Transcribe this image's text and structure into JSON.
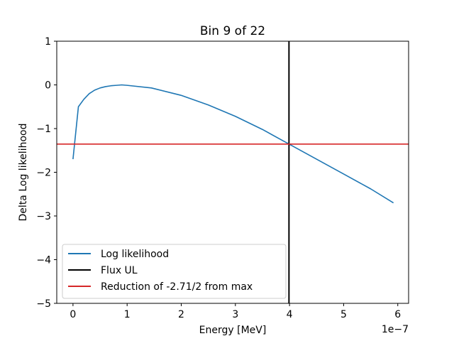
{
  "chart_data": {
    "type": "line",
    "title": "Bin 9 of 22",
    "xlabel": "Energy [MeV]",
    "ylabel": "Delta Log likelihood",
    "x_offset_label": "1e−7",
    "xlim": [
      -0.3,
      6.2
    ],
    "ylim": [
      -5,
      1
    ],
    "xticks": [
      0,
      1,
      2,
      3,
      4,
      5,
      6
    ],
    "xtick_labels": [
      "0",
      "1",
      "2",
      "3",
      "4",
      "5",
      "6"
    ],
    "yticks": [
      1,
      0,
      -1,
      -2,
      -3,
      -4,
      -5
    ],
    "ytick_labels": [
      "1",
      "0",
      "−1",
      "−2",
      "−3",
      "−4",
      "−5"
    ],
    "grid": false,
    "legend_position": "lower-left",
    "series": [
      {
        "name": "Log likelihood",
        "kind": "curve",
        "color": "#1f77b4",
        "x": [
          0.0,
          0.1,
          0.2,
          0.3,
          0.4,
          0.5,
          0.6,
          0.7,
          0.8,
          0.9,
          1.0,
          1.45,
          2.0,
          2.5,
          3.0,
          3.5,
          4.0,
          4.5,
          5.0,
          5.5,
          5.92
        ],
        "y": [
          -1.7,
          -0.5,
          -0.33,
          -0.2,
          -0.12,
          -0.07,
          -0.04,
          -0.02,
          -0.01,
          0.0,
          -0.01,
          -0.07,
          -0.24,
          -0.46,
          -0.72,
          -1.02,
          -1.36,
          -1.7,
          -2.04,
          -2.38,
          -2.7
        ]
      },
      {
        "name": "Flux UL",
        "kind": "vline",
        "color": "#000000",
        "x": 3.99
      },
      {
        "name": "Reduction of -2.71/2 from max",
        "kind": "hline",
        "color": "#d62728",
        "y": -1.355
      }
    ]
  }
}
